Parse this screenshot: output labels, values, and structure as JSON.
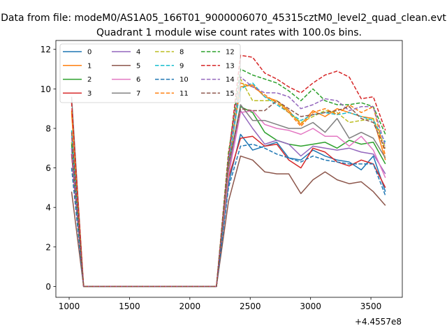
{
  "suptitle": "Data from file: modeM0/AS1A05_166T01_9000006070_45315cztM0_level2_quad_clean.evt",
  "chart_data": {
    "type": "line",
    "title": "Quadrant 1 module wise count rates with 100.0s bins.",
    "xlabel": "",
    "ylabel": "",
    "x_offset_label": "+4.4557e8",
    "x": [
      1020,
      1120,
      1220,
      1320,
      1420,
      1520,
      1620,
      1720,
      1820,
      1920,
      2020,
      2120,
      2220,
      2320,
      2420,
      2520,
      2620,
      2720,
      2820,
      2920,
      3020,
      3120,
      3220,
      3320,
      3420,
      3520,
      3620
    ],
    "xlim": [
      890,
      3760
    ],
    "ylim": [
      -0.55,
      12.45
    ],
    "xticks": [
      1000,
      1500,
      2000,
      2500,
      3000,
      3500
    ],
    "yticks": [
      0,
      2,
      4,
      6,
      8,
      10,
      12
    ],
    "grid": false,
    "legend": "upper-left",
    "series": [
      {
        "name": "0",
        "color": "#1f77b4",
        "dash": false,
        "values": [
          6.7,
          0,
          0,
          0,
          0,
          0,
          0,
          0,
          0,
          0,
          0,
          0,
          0,
          5.2,
          7.7,
          6.9,
          7.1,
          7.3,
          6.5,
          6.4,
          6.9,
          6.6,
          6.4,
          6.3,
          5.9,
          6.6,
          4.8
        ]
      },
      {
        "name": "1",
        "color": "#ff7f0e",
        "dash": false,
        "values": [
          8.8,
          0,
          0,
          0,
          0,
          0,
          0,
          0,
          0,
          0,
          0,
          0,
          0,
          6.2,
          10.1,
          10.2,
          9.6,
          9.4,
          8.9,
          8.2,
          8.9,
          8.6,
          9.0,
          8.8,
          8.6,
          8.5,
          6.4
        ]
      },
      {
        "name": "2",
        "color": "#2ca02c",
        "dash": false,
        "values": [
          7.3,
          0,
          0,
          0,
          0,
          0,
          0,
          0,
          0,
          0,
          0,
          0,
          0,
          5.8,
          9.1,
          8.8,
          7.8,
          7.4,
          7.2,
          7.1,
          7.2,
          7.3,
          7.0,
          7.4,
          7.2,
          7.3,
          6.2
        ]
      },
      {
        "name": "3",
        "color": "#d62728",
        "dash": false,
        "values": [
          6.7,
          0,
          0,
          0,
          0,
          0,
          0,
          0,
          0,
          0,
          0,
          0,
          0,
          5.5,
          7.5,
          7.6,
          7.1,
          7.2,
          6.4,
          6.0,
          7.0,
          6.8,
          6.3,
          6.1,
          6.4,
          6.2,
          5.0
        ]
      },
      {
        "name": "4",
        "color": "#9467bd",
        "dash": false,
        "values": [
          7.0,
          0,
          0,
          0,
          0,
          0,
          0,
          0,
          0,
          0,
          0,
          0,
          0,
          5.8,
          8.9,
          8.0,
          7.2,
          7.4,
          7.2,
          6.6,
          7.1,
          7.0,
          6.9,
          7.0,
          6.8,
          6.7,
          5.7
        ]
      },
      {
        "name": "5",
        "color": "#8c564b",
        "dash": false,
        "values": [
          4.8,
          0,
          0,
          0,
          0,
          0,
          0,
          0,
          0,
          0,
          0,
          0,
          0,
          4.3,
          6.6,
          6.4,
          5.8,
          5.7,
          5.7,
          4.7,
          5.4,
          5.8,
          5.4,
          5.2,
          5.3,
          4.8,
          4.1
        ]
      },
      {
        "name": "6",
        "color": "#e377c2",
        "dash": false,
        "values": [
          7.6,
          0,
          0,
          0,
          0,
          0,
          0,
          0,
          0,
          0,
          0,
          0,
          0,
          5.6,
          8.8,
          8.9,
          8.2,
          8.0,
          7.9,
          7.7,
          8.0,
          7.6,
          7.6,
          7.1,
          7.6,
          6.9,
          5.5
        ]
      },
      {
        "name": "7",
        "color": "#7f7f7f",
        "dash": false,
        "values": [
          9.6,
          0,
          0,
          0,
          0,
          0,
          0,
          0,
          0,
          0,
          0,
          0,
          0,
          6.1,
          9.2,
          8.4,
          8.4,
          8.2,
          8.0,
          8.0,
          8.3,
          7.8,
          8.5,
          7.5,
          7.8,
          7.5,
          6.5
        ]
      },
      {
        "name": "8",
        "color": "#bcbd22",
        "dash": true,
        "values": [
          7.3,
          0,
          0,
          0,
          0,
          0,
          0,
          0,
          0,
          0,
          0,
          0,
          0,
          6.0,
          10.5,
          9.4,
          9.4,
          9.4,
          8.8,
          8.3,
          8.6,
          8.9,
          8.8,
          8.3,
          8.4,
          8.5,
          7.0
        ]
      },
      {
        "name": "9",
        "color": "#17becf",
        "dash": true,
        "values": [
          7.9,
          0,
          0,
          0,
          0,
          0,
          0,
          0,
          0,
          0,
          0,
          0,
          0,
          6.3,
          10.0,
          10.3,
          9.6,
          9.2,
          8.8,
          8.4,
          8.7,
          8.8,
          8.7,
          8.8,
          8.6,
          8.4,
          7.3
        ]
      },
      {
        "name": "10",
        "color": "#1f77b4",
        "dash": true,
        "values": [
          6.0,
          0,
          0,
          0,
          0,
          0,
          0,
          0,
          0,
          0,
          0,
          0,
          0,
          5.0,
          7.1,
          7.2,
          7.0,
          6.7,
          6.5,
          6.3,
          6.6,
          6.4,
          6.3,
          6.2,
          6.2,
          6.2,
          4.6
        ]
      },
      {
        "name": "11",
        "color": "#ff7f0e",
        "dash": true,
        "values": [
          8.9,
          0,
          0,
          0,
          0,
          0,
          0,
          0,
          0,
          0,
          0,
          0,
          0,
          6.8,
          10.3,
          10.1,
          9.7,
          9.3,
          8.8,
          8.1,
          8.8,
          9.0,
          8.7,
          9.2,
          8.8,
          9.1,
          6.6
        ]
      },
      {
        "name": "12",
        "color": "#2ca02c",
        "dash": true,
        "values": [
          7.2,
          0,
          0,
          0,
          0,
          0,
          0,
          0,
          0,
          0,
          0,
          0,
          0,
          6.7,
          11.0,
          10.7,
          10.5,
          10.3,
          9.9,
          9.4,
          10.0,
          9.4,
          9.2,
          9.2,
          9.3,
          9.1,
          7.7
        ]
      },
      {
        "name": "13",
        "color": "#d62728",
        "dash": true,
        "values": [
          9.3,
          0,
          0,
          0,
          0,
          0,
          0,
          0,
          0,
          0,
          0,
          0,
          0,
          6.5,
          11.7,
          11.6,
          10.8,
          10.5,
          10.1,
          9.8,
          10.3,
          10.7,
          10.9,
          10.6,
          9.5,
          9.6,
          7.9
        ]
      },
      {
        "name": "14",
        "color": "#9467bd",
        "dash": true,
        "values": [
          7.0,
          0,
          0,
          0,
          0,
          0,
          0,
          0,
          0,
          0,
          0,
          0,
          0,
          6.4,
          10.6,
          10.1,
          9.8,
          9.8,
          9.6,
          9.0,
          9.2,
          9.5,
          9.4,
          8.9,
          9.1,
          9.1,
          7.1
        ]
      },
      {
        "name": "15",
        "color": "#8c564b",
        "dash": true,
        "values": [
          7.8,
          0,
          0,
          0,
          0,
          0,
          0,
          0,
          0,
          0,
          0,
          0,
          0,
          6.2,
          9.0,
          8.9,
          8.9,
          9.4,
          9.0,
          8.6,
          8.7,
          8.8,
          8.9,
          9.1,
          8.5,
          8.3,
          6.9
        ]
      }
    ]
  }
}
